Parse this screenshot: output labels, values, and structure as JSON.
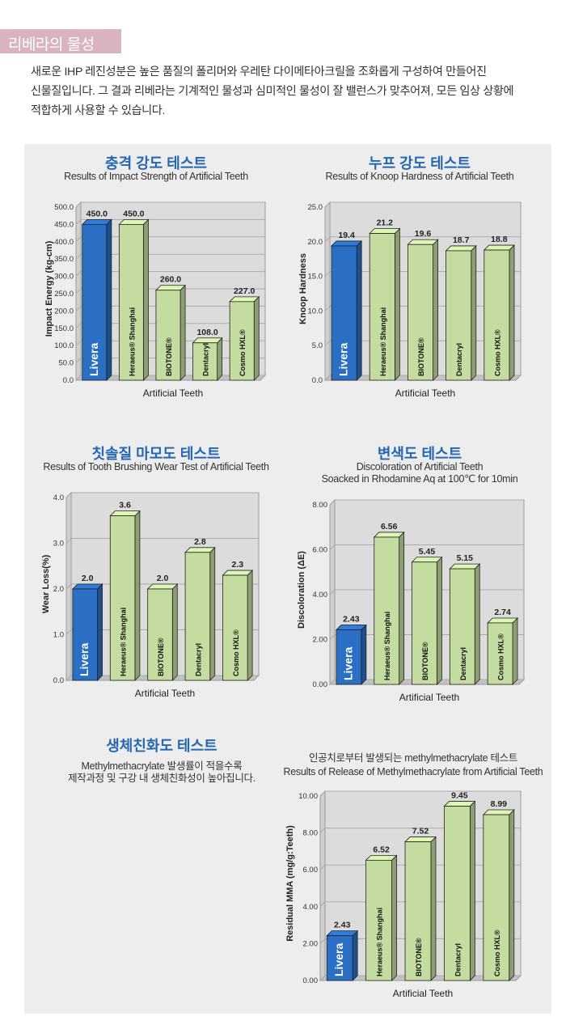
{
  "header": {
    "section_title": "리베라의 물성"
  },
  "intro": {
    "lines": [
      "새로운 IHP 레진성분은 높은 품질의 폴리머와 우레탄 다이메타아크릴을 조화롭게 구성하여 만들어진",
      "신물질입니다. 그 결과 리베라는 기계적인 물성과 심미적인 물성이 잘 밸런스가 맞추어져, 모든 임상 상황에",
      "적합하게 사용할 수 있습니다."
    ]
  },
  "biocompat": {
    "title": "생체친화도 테스트",
    "lines": [
      "Methylmethacrylate 발생률이 적을수록",
      "제작과정 및 구강 내 생체친화성이 높아집니다."
    ]
  },
  "colors": {
    "livera": "#2a6fc4",
    "other": "#c4dca0",
    "accent_title": "#2466b0",
    "tab": "#d9b3bd"
  },
  "chart_data": [
    {
      "type": "bar",
      "title": "충격 강도 테스트",
      "subtitle": "Results of Impact Strength of Artificial Teeth",
      "xlabel": "Artificial Teeth",
      "ylabel": "Impact Energy (kg-cm)",
      "categories": [
        "Livera",
        "Heraeus® Shanghai",
        "BIOTONE®",
        "Dentacryl",
        "Cosmo HXL®"
      ],
      "values": [
        450.0,
        450.0,
        260.0,
        108.0,
        227.0
      ],
      "value_labels": [
        "450.0",
        "450.0",
        "260.0",
        "108.0",
        "227.0"
      ],
      "ylim": [
        0,
        500
      ],
      "yticks": [
        "0.0",
        "50.0",
        "100.0",
        "150.0",
        "200.0",
        "250.0",
        "300.0",
        "350.0",
        "400.0",
        "450.0",
        "500.0"
      ],
      "grid": true
    },
    {
      "type": "bar",
      "title": "누프 강도 테스트",
      "subtitle": "Results of Knoop Hardness of Artificial Teeth",
      "xlabel": "Artificial Teeth",
      "ylabel": "Knoop Hardness",
      "categories": [
        "Livera",
        "Heraeus® Shanghai",
        "BIOTONE®",
        "Dentacryl",
        "Cosmo HXL®"
      ],
      "values": [
        19.4,
        21.2,
        19.6,
        18.7,
        18.8
      ],
      "value_labels": [
        "19.4",
        "21.2",
        "19.6",
        "18.7",
        "18.8"
      ],
      "ylim": [
        0,
        25
      ],
      "yticks": [
        "0.0",
        "5.0",
        "10.0",
        "15.0",
        "20.0",
        "25.0"
      ],
      "grid": true
    },
    {
      "type": "bar",
      "title": "칫솔질 마모도 테스트",
      "subtitle": "Results of Tooth Brushing Wear Test of Artificial Teeth",
      "xlabel": "Artificial Teeth",
      "ylabel": "Wear Loss(%)",
      "categories": [
        "Livera",
        "Heraeus® Shanghai",
        "BIOTONE®",
        "Dentacryl",
        "Cosmo HXL®"
      ],
      "values": [
        2.0,
        3.6,
        2.0,
        2.8,
        2.3
      ],
      "value_labels": [
        "2.0",
        "3.6",
        "2.0",
        "2.8",
        "2.3"
      ],
      "ylim": [
        0,
        4
      ],
      "yticks": [
        "0.0",
        "1.0",
        "2.0",
        "3.0",
        "4.0"
      ],
      "grid": true
    },
    {
      "type": "bar",
      "title": "변색도 테스트",
      "subtitle": "Discoloration of Artificial Teeth",
      "subtitle2": "Soacked in Rhodamine Aq at 100℃ for 10min",
      "xlabel": "Artificial Teeth",
      "ylabel": "Discoloration (ΔE)",
      "categories": [
        "Livera",
        "Heraeus® Shanghai",
        "BIOTONE®",
        "Dentacryl",
        "Cosmo HXL®"
      ],
      "values": [
        2.43,
        6.56,
        5.45,
        5.15,
        2.74
      ],
      "value_labels": [
        "2.43",
        "6.56",
        "5.45",
        "5.15",
        "2.74"
      ],
      "ylim": [
        0,
        8
      ],
      "yticks": [
        "0.00",
        "2.00",
        "4.00",
        "6.00",
        "8.00"
      ],
      "grid": true
    },
    {
      "type": "bar",
      "title": "",
      "subtitle": "인공치로부터 발생되는 methylmethacrylate  테스트",
      "subtitle2": "Results of Release of Methylmethacrylate from Artificial Teeth",
      "xlabel": "Artificial Teeth",
      "ylabel": "Residual MMA (mg/g:Teeth)",
      "categories": [
        "Livera",
        "Heraeus® Shanghai",
        "BIOTONE®",
        "Dentacryl",
        "Cosmo HXL®"
      ],
      "values": [
        2.43,
        6.52,
        7.52,
        9.45,
        8.99
      ],
      "value_labels": [
        "2.43",
        "6.52",
        "7.52",
        "9.45",
        "8.99"
      ],
      "ylim": [
        0,
        10
      ],
      "yticks": [
        "0.00",
        "2.00",
        "4.00",
        "6.00",
        "8.00",
        "10.00"
      ],
      "grid": true
    }
  ]
}
